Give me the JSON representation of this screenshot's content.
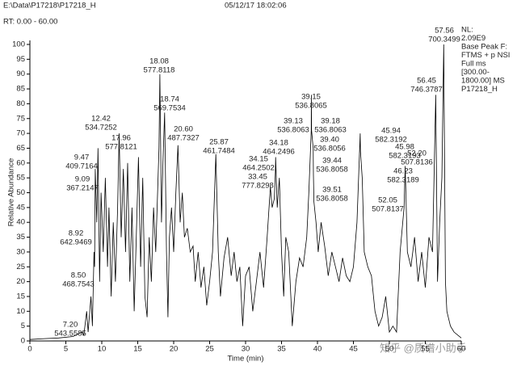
{
  "header": {
    "file": "E:\\Data\\P17218\\P17218_H",
    "datetime": "05/12/17 18:02:06",
    "rt_range": "RT: 0.00 - 60.00"
  },
  "info": [
    "NL:",
    "2.09E9",
    "Base Peak F:",
    "FTMS + p NSI",
    "Full ms",
    "[300.00-",
    "1800.00]  MS",
    "P17218_H"
  ],
  "watermark": "知乎 @质谱小助手",
  "chart_data": {
    "type": "line",
    "x_label": "Time (min)",
    "y_label": "Relative Abundance",
    "color": "#000000",
    "xlim": [
      0,
      60
    ],
    "xticks": [
      0,
      5,
      10,
      15,
      20,
      25,
      30,
      35,
      40,
      45,
      50,
      55,
      60
    ],
    "ylim": [
      0,
      100
    ],
    "yticks": [
      0,
      5,
      10,
      15,
      20,
      25,
      30,
      35,
      40,
      45,
      50,
      55,
      60,
      65,
      70,
      75,
      80,
      85,
      90,
      95,
      100
    ],
    "x": [
      0,
      2,
      4,
      6,
      7.2,
      7.5,
      7.9,
      8.1,
      8.5,
      8.7,
      8.92,
      9.0,
      9.09,
      9.3,
      9.47,
      9.7,
      9.9,
      10.2,
      10.5,
      10.8,
      11,
      11.3,
      11.6,
      11.9,
      12.2,
      12.42,
      12.7,
      13,
      13.3,
      13.6,
      13.9,
      14.2,
      14.5,
      14.8,
      15.1,
      15.4,
      15.7,
      16,
      16.3,
      16.6,
      16.9,
      17.2,
      17.5,
      17.96,
      18.08,
      18.3,
      18.5,
      18.74,
      19,
      19.2,
      19.4,
      19.7,
      20,
      20.3,
      20.6,
      20.9,
      21.2,
      21.5,
      21.9,
      22.3,
      22.7,
      23,
      23.4,
      23.8,
      24.2,
      24.6,
      25,
      25.4,
      25.87,
      26.2,
      26.5,
      27,
      27.5,
      28,
      28.4,
      28.8,
      29.2,
      29.6,
      30,
      30.5,
      31,
      31.5,
      32,
      32.5,
      33,
      33.45,
      33.7,
      34,
      34.15,
      34.18,
      34.4,
      34.7,
      35,
      35.3,
      35.6,
      36,
      36.5,
      37,
      37.5,
      38,
      38.5,
      38.8,
      39.13,
      39.15,
      39.18,
      39.4,
      39.44,
      39.51,
      39.8,
      40.1,
      40.5,
      41,
      41.5,
      42,
      42.5,
      43,
      43.5,
      44,
      44.5,
      45,
      45.5,
      45.94,
      45.98,
      46.23,
      46.5,
      47,
      47.5,
      48,
      48.5,
      49,
      49.5,
      50,
      50.5,
      51,
      51.5,
      52.05,
      52.2,
      52.5,
      53,
      53.5,
      54,
      54.5,
      55,
      55.5,
      56,
      56.45,
      56.7,
      57,
      57.3,
      57.56,
      57.8,
      58,
      58.5,
      59,
      60
    ],
    "values": [
      0.5,
      0.8,
      1,
      1.5,
      3,
      2,
      10,
      3,
      15,
      5,
      30,
      25,
      58,
      40,
      65,
      20,
      50,
      30,
      55,
      25,
      45,
      15,
      40,
      20,
      45,
      70,
      35,
      58,
      30,
      60,
      20,
      45,
      10,
      35,
      62,
      25,
      55,
      15,
      8,
      35,
      20,
      45,
      30,
      65,
      90,
      40,
      60,
      77,
      30,
      8,
      35,
      45,
      30,
      50,
      66,
      40,
      50,
      35,
      38,
      30,
      32,
      20,
      30,
      18,
      25,
      12,
      20,
      30,
      63,
      30,
      15,
      28,
      35,
      22,
      30,
      20,
      25,
      5,
      22,
      25,
      10,
      20,
      30,
      18,
      35,
      52,
      45,
      48,
      57,
      62,
      45,
      55,
      30,
      15,
      35,
      30,
      5,
      20,
      28,
      25,
      35,
      50,
      71,
      83,
      71,
      65,
      56,
      47,
      40,
      30,
      40,
      32,
      22,
      30,
      25,
      20,
      28,
      22,
      20,
      25,
      40,
      70,
      64,
      55,
      30,
      25,
      22,
      10,
      5,
      8,
      15,
      3,
      5,
      3,
      30,
      45,
      59,
      30,
      25,
      35,
      20,
      30,
      18,
      35,
      30,
      83,
      20,
      40,
      55,
      100,
      20,
      10,
      5,
      3,
      1
    ],
    "annotations": [
      [
        "7.20",
        "543.5585"
      ],
      [
        "8.50",
        "468.7543"
      ],
      [
        "8.92",
        "642.9469"
      ],
      [
        "9.09",
        "367.2147"
      ],
      [
        "9.47",
        "409.7164"
      ],
      [
        "12.42",
        "534.7252"
      ],
      [
        "17.96",
        "577.8121"
      ],
      [
        "18.08",
        "577.8118"
      ],
      [
        "18.74",
        "569.7534"
      ],
      [
        "20.60",
        "487.7327"
      ],
      [
        "25.87",
        "461.7484"
      ],
      [
        "33.45",
        "777.8298"
      ],
      [
        "34.15",
        "464.2502"
      ],
      [
        "34.18",
        "464.2496"
      ],
      [
        "39.13",
        "536.8063"
      ],
      [
        "39.15",
        "536.8065"
      ],
      [
        "39.18",
        "536.8063"
      ],
      [
        "39.40",
        "536.8056"
      ],
      [
        "39.44",
        "536.8058"
      ],
      [
        "39.51",
        "536.8058"
      ],
      [
        "45.94",
        "582.3192"
      ],
      [
        "45.98",
        "582.3193"
      ],
      [
        "46.23",
        "582.3189"
      ],
      [
        "52.05",
        "507.8137"
      ],
      [
        "52.20",
        "507.8136"
      ],
      [
        "56.45",
        "746.3787"
      ],
      [
        "57.56",
        "700.3499"
      ]
    ]
  }
}
